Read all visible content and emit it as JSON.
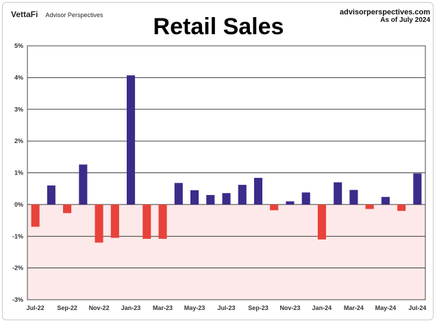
{
  "header": {
    "brand_logo": "VettaFi",
    "brand_sub": "Advisor Perspectives",
    "site_url": "advisorperspectives.com",
    "as_of": "As of July 2024"
  },
  "colors": {
    "positive": "#3d2b8a",
    "negative": "#e8423a",
    "negative_region": "#fde9e9",
    "grid": "#000000"
  },
  "chart_data": {
    "type": "bar",
    "title": "Retail Sales",
    "xlabel": "",
    "ylabel": "",
    "ylim": [
      -3,
      5
    ],
    "y_ticks": [
      "-3%",
      "-2%",
      "-1%",
      "0%",
      "1%",
      "2%",
      "3%",
      "4%",
      "5%"
    ],
    "x_tick_labels": [
      "Jul-22",
      "Sep-22",
      "Nov-22",
      "Jan-23",
      "Mar-23",
      "May-23",
      "Jul-23",
      "Sep-23",
      "Nov-23",
      "Jan-24",
      "Mar-24",
      "May-24",
      "Jul-24"
    ],
    "categories": [
      "Jul-22",
      "Aug-22",
      "Sep-22",
      "Oct-22",
      "Nov-22",
      "Dec-22",
      "Jan-23",
      "Feb-23",
      "Mar-23",
      "Apr-23",
      "May-23",
      "Jun-23",
      "Jul-23",
      "Aug-23",
      "Sep-23",
      "Oct-23",
      "Nov-23",
      "Dec-23",
      "Jan-24",
      "Feb-24",
      "Mar-24",
      "Apr-24",
      "May-24",
      "Jun-24",
      "Jul-24"
    ],
    "values": [
      -0.7,
      0.6,
      -0.27,
      1.26,
      -1.2,
      -1.05,
      4.07,
      -1.08,
      -1.08,
      0.68,
      0.45,
      0.3,
      0.36,
      0.62,
      0.84,
      -0.18,
      0.1,
      0.38,
      -1.1,
      0.7,
      0.46,
      -0.14,
      0.24,
      -0.2,
      0.98
    ],
    "grid": true,
    "legend": "none"
  }
}
